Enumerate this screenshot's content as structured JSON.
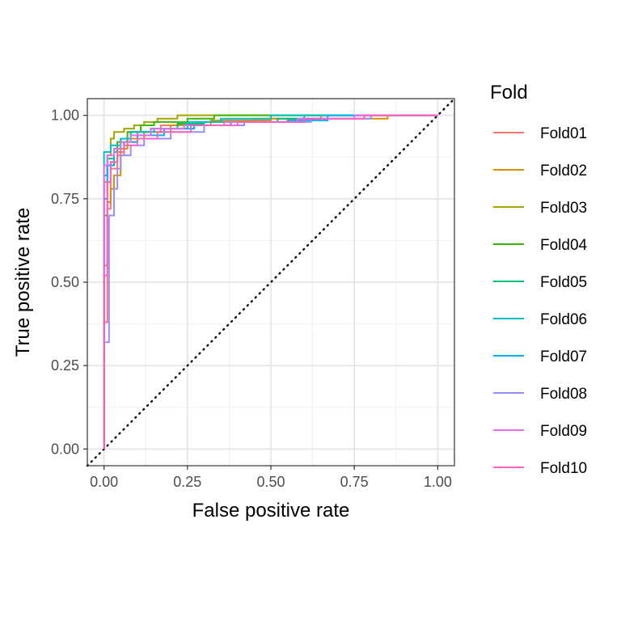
{
  "chart_data": {
    "type": "line",
    "xlabel": "False positive rate",
    "ylabel": "True positive rate",
    "xlim": [
      -0.05,
      1.05
    ],
    "ylim": [
      -0.05,
      1.05
    ],
    "x_ticks": [
      "0.00",
      "0.25",
      "0.50",
      "0.75",
      "1.00"
    ],
    "y_ticks": [
      "0.00",
      "0.25",
      "0.50",
      "0.75",
      "1.00"
    ],
    "grid": true,
    "legend": {
      "title": "Fold",
      "position": "right"
    },
    "reference_line": {
      "style": "dotted",
      "color": "#000000",
      "points": [
        [
          -0.05,
          -0.05
        ],
        [
          1.05,
          1.05
        ]
      ]
    },
    "series": [
      {
        "name": "Fold01",
        "color": "#F8766D",
        "points": [
          [
            0,
            0
          ],
          [
            0,
            0.38
          ],
          [
            0.01,
            0.38
          ],
          [
            0.01,
            0.72
          ],
          [
            0.02,
            0.72
          ],
          [
            0.02,
            0.84
          ],
          [
            0.04,
            0.84
          ],
          [
            0.04,
            0.88
          ],
          [
            0.06,
            0.88
          ],
          [
            0.06,
            0.92
          ],
          [
            0.1,
            0.92
          ],
          [
            0.1,
            0.95
          ],
          [
            0.17,
            0.95
          ],
          [
            0.17,
            0.97
          ],
          [
            0.28,
            0.97
          ],
          [
            0.28,
            0.98
          ],
          [
            0.45,
            0.98
          ],
          [
            0.45,
            0.99
          ],
          [
            0.65,
            0.99
          ],
          [
            0.65,
            1.0
          ],
          [
            1.0,
            1.0
          ]
        ]
      },
      {
        "name": "Fold02",
        "color": "#D89000",
        "points": [
          [
            0,
            0
          ],
          [
            0,
            0.55
          ],
          [
            0.01,
            0.55
          ],
          [
            0.01,
            0.74
          ],
          [
            0.02,
            0.74
          ],
          [
            0.02,
            0.78
          ],
          [
            0.03,
            0.78
          ],
          [
            0.03,
            0.82
          ],
          [
            0.05,
            0.82
          ],
          [
            0.05,
            0.9
          ],
          [
            0.07,
            0.9
          ],
          [
            0.07,
            0.93
          ],
          [
            0.12,
            0.93
          ],
          [
            0.12,
            0.95
          ],
          [
            0.2,
            0.95
          ],
          [
            0.2,
            0.97
          ],
          [
            0.32,
            0.97
          ],
          [
            0.32,
            0.985
          ],
          [
            0.5,
            0.985
          ],
          [
            0.5,
            0.99
          ],
          [
            0.85,
            0.99
          ],
          [
            0.85,
            1.0
          ],
          [
            1.0,
            1.0
          ]
        ]
      },
      {
        "name": "Fold03",
        "color": "#A3A500",
        "points": [
          [
            0,
            0
          ],
          [
            0,
            0.8
          ],
          [
            0.01,
            0.8
          ],
          [
            0.01,
            0.88
          ],
          [
            0.02,
            0.88
          ],
          [
            0.02,
            0.93
          ],
          [
            0.03,
            0.93
          ],
          [
            0.03,
            0.95
          ],
          [
            0.06,
            0.95
          ],
          [
            0.06,
            0.96
          ],
          [
            0.09,
            0.96
          ],
          [
            0.09,
            0.97
          ],
          [
            0.12,
            0.97
          ],
          [
            0.12,
            0.98
          ],
          [
            0.16,
            0.98
          ],
          [
            0.16,
            0.99
          ],
          [
            0.22,
            0.99
          ],
          [
            0.22,
            1.0
          ],
          [
            1.0,
            1.0
          ]
        ]
      },
      {
        "name": "Fold04",
        "color": "#39B600",
        "points": [
          [
            0,
            0
          ],
          [
            0,
            0.7
          ],
          [
            0.01,
            0.7
          ],
          [
            0.01,
            0.8
          ],
          [
            0.02,
            0.8
          ],
          [
            0.02,
            0.86
          ],
          [
            0.04,
            0.86
          ],
          [
            0.04,
            0.92
          ],
          [
            0.07,
            0.92
          ],
          [
            0.07,
            0.95
          ],
          [
            0.11,
            0.95
          ],
          [
            0.11,
            0.97
          ],
          [
            0.15,
            0.97
          ],
          [
            0.15,
            0.98
          ],
          [
            0.25,
            0.98
          ],
          [
            0.25,
            0.99
          ],
          [
            0.33,
            0.99
          ],
          [
            0.33,
            1.0
          ],
          [
            1.0,
            1.0
          ]
        ]
      },
      {
        "name": "Fold05",
        "color": "#00BF7D",
        "points": [
          [
            0,
            0
          ],
          [
            0,
            0.82
          ],
          [
            0.01,
            0.82
          ],
          [
            0.01,
            0.87
          ],
          [
            0.03,
            0.87
          ],
          [
            0.03,
            0.9
          ],
          [
            0.05,
            0.9
          ],
          [
            0.05,
            0.93
          ],
          [
            0.08,
            0.93
          ],
          [
            0.08,
            0.95
          ],
          [
            0.14,
            0.95
          ],
          [
            0.14,
            0.96
          ],
          [
            0.22,
            0.96
          ],
          [
            0.22,
            0.975
          ],
          [
            0.3,
            0.975
          ],
          [
            0.3,
            0.98
          ],
          [
            0.52,
            0.98
          ],
          [
            0.52,
            0.99
          ],
          [
            0.6,
            0.99
          ],
          [
            0.6,
            1.0
          ],
          [
            1.0,
            1.0
          ]
        ]
      },
      {
        "name": "Fold06",
        "color": "#00BFC4",
        "points": [
          [
            0,
            0
          ],
          [
            0,
            0.89
          ],
          [
            0.02,
            0.89
          ],
          [
            0.02,
            0.91
          ],
          [
            0.05,
            0.91
          ],
          [
            0.05,
            0.93
          ],
          [
            0.08,
            0.93
          ],
          [
            0.08,
            0.95
          ],
          [
            0.15,
            0.95
          ],
          [
            0.15,
            0.96
          ],
          [
            0.25,
            0.96
          ],
          [
            0.25,
            0.98
          ],
          [
            0.35,
            0.98
          ],
          [
            0.35,
            0.99
          ],
          [
            0.5,
            0.99
          ],
          [
            0.5,
            1.0
          ],
          [
            1.0,
            1.0
          ]
        ]
      },
      {
        "name": "Fold07",
        "color": "#00B0F6",
        "points": [
          [
            0,
            0
          ],
          [
            0,
            0.75
          ],
          [
            0.01,
            0.75
          ],
          [
            0.01,
            0.85
          ],
          [
            0.03,
            0.85
          ],
          [
            0.03,
            0.89
          ],
          [
            0.06,
            0.89
          ],
          [
            0.06,
            0.92
          ],
          [
            0.1,
            0.92
          ],
          [
            0.1,
            0.94
          ],
          [
            0.18,
            0.94
          ],
          [
            0.18,
            0.96
          ],
          [
            0.27,
            0.96
          ],
          [
            0.27,
            0.97
          ],
          [
            0.38,
            0.97
          ],
          [
            0.38,
            0.98
          ],
          [
            0.55,
            0.98
          ],
          [
            0.55,
            0.985
          ],
          [
            0.67,
            0.985
          ],
          [
            0.67,
            1.0
          ],
          [
            1.0,
            1.0
          ]
        ]
      },
      {
        "name": "Fold08",
        "color": "#9590FF",
        "points": [
          [
            0,
            0
          ],
          [
            0,
            0.32
          ],
          [
            0.015,
            0.32
          ],
          [
            0.015,
            0.7
          ],
          [
            0.03,
            0.7
          ],
          [
            0.03,
            0.78
          ],
          [
            0.04,
            0.78
          ],
          [
            0.04,
            0.84
          ],
          [
            0.05,
            0.84
          ],
          [
            0.05,
            0.88
          ],
          [
            0.08,
            0.88
          ],
          [
            0.08,
            0.91
          ],
          [
            0.12,
            0.91
          ],
          [
            0.12,
            0.93
          ],
          [
            0.2,
            0.93
          ],
          [
            0.2,
            0.95
          ],
          [
            0.3,
            0.95
          ],
          [
            0.3,
            0.97
          ],
          [
            0.42,
            0.97
          ],
          [
            0.42,
            0.98
          ],
          [
            0.62,
            0.98
          ],
          [
            0.62,
            0.99
          ],
          [
            0.8,
            0.99
          ],
          [
            0.8,
            1.0
          ],
          [
            1.0,
            1.0
          ]
        ]
      },
      {
        "name": "Fold09",
        "color": "#E76BF3",
        "points": [
          [
            0,
            0
          ],
          [
            0,
            0.85
          ],
          [
            0.01,
            0.85
          ],
          [
            0.01,
            0.88
          ],
          [
            0.03,
            0.88
          ],
          [
            0.03,
            0.9
          ],
          [
            0.05,
            0.9
          ],
          [
            0.05,
            0.92
          ],
          [
            0.08,
            0.92
          ],
          [
            0.08,
            0.94
          ],
          [
            0.14,
            0.94
          ],
          [
            0.14,
            0.96
          ],
          [
            0.24,
            0.96
          ],
          [
            0.24,
            0.97
          ],
          [
            0.36,
            0.97
          ],
          [
            0.36,
            0.98
          ],
          [
            0.58,
            0.98
          ],
          [
            0.58,
            0.99
          ],
          [
            0.75,
            0.99
          ],
          [
            0.75,
            1.0
          ],
          [
            1.0,
            1.0
          ]
        ]
      },
      {
        "name": "Fold10",
        "color": "#FF62BC",
        "points": [
          [
            0,
            0
          ],
          [
            0,
            0.52
          ],
          [
            0.01,
            0.52
          ],
          [
            0.01,
            0.8
          ],
          [
            0.02,
            0.8
          ],
          [
            0.02,
            0.86
          ],
          [
            0.04,
            0.86
          ],
          [
            0.04,
            0.89
          ],
          [
            0.06,
            0.89
          ],
          [
            0.06,
            0.91
          ],
          [
            0.1,
            0.91
          ],
          [
            0.1,
            0.93
          ],
          [
            0.16,
            0.93
          ],
          [
            0.16,
            0.95
          ],
          [
            0.26,
            0.95
          ],
          [
            0.26,
            0.97
          ],
          [
            0.4,
            0.97
          ],
          [
            0.4,
            0.98
          ],
          [
            0.6,
            0.98
          ],
          [
            0.6,
            0.99
          ],
          [
            0.78,
            0.99
          ],
          [
            0.78,
            1.0
          ],
          [
            1.0,
            1.0
          ]
        ]
      }
    ]
  }
}
